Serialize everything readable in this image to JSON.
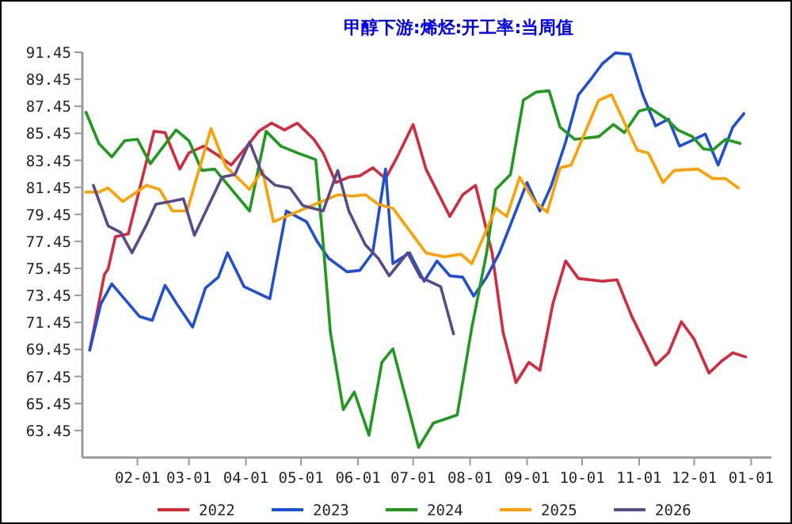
{
  "chart_data": {
    "type": "line",
    "title": "甲醇下游:烯烃:开工率:当周值",
    "xlim": [
      "2022-01-02",
      "2023-01-12"
    ],
    "ylim": [
      61.45,
      91.45
    ],
    "xticks": [
      {
        "value": "2022-02-01",
        "label": "02-01"
      },
      {
        "value": "2022-03-01",
        "label": "03-01"
      },
      {
        "value": "2022-04-01",
        "label": "04-01"
      },
      {
        "value": "2022-05-01",
        "label": "05-01"
      },
      {
        "value": "2022-06-01",
        "label": "06-01"
      },
      {
        "value": "2022-07-01",
        "label": "07-01"
      },
      {
        "value": "2022-08-01",
        "label": "08-01"
      },
      {
        "value": "2022-09-01",
        "label": "09-01"
      },
      {
        "value": "2022-10-01",
        "label": "10-01"
      },
      {
        "value": "2022-11-01",
        "label": "11-01"
      },
      {
        "value": "2022-12-01",
        "label": "12-01"
      },
      {
        "value": "2023-01-01",
        "label": "01-01"
      }
    ],
    "yticks": [
      63.45,
      65.45,
      67.45,
      69.45,
      71.45,
      73.45,
      75.45,
      77.45,
      79.45,
      81.45,
      83.45,
      85.45,
      87.45,
      89.45,
      91.45
    ],
    "legend": "bottom",
    "series": [
      {
        "name": "2022",
        "color": "#d62a3c",
        "x": [
          "2022-01-06",
          "2022-01-14",
          "2022-01-16",
          "2022-01-20",
          "2022-01-27",
          "2022-02-10",
          "2022-02-16",
          "2022-02-24",
          "2022-03-01",
          "2022-03-09",
          "2022-03-17",
          "2022-03-24",
          "2022-04-01",
          "2022-04-08",
          "2022-04-15",
          "2022-04-22",
          "2022-04-29",
          "2022-05-08",
          "2022-05-13",
          "2022-05-20",
          "2022-05-27",
          "2022-06-02",
          "2022-06-09",
          "2022-06-16",
          "2022-06-22",
          "2022-07-01",
          "2022-07-08",
          "2022-07-21",
          "2022-07-28",
          "2022-08-04",
          "2022-08-13",
          "2022-08-19",
          "2022-08-26",
          "2022-09-02",
          "2022-09-08",
          "2022-09-15",
          "2022-09-22",
          "2022-09-29",
          "2022-10-12",
          "2022-10-20",
          "2022-10-28",
          "2022-11-10",
          "2022-11-17",
          "2022-11-24",
          "2022-12-01",
          "2022-12-09",
          "2022-12-16",
          "2022-12-22",
          "2022-12-29"
        ],
        "values": [
          69.4,
          75.0,
          75.4,
          77.8,
          78.0,
          85.6,
          85.5,
          82.8,
          84.0,
          84.5,
          83.8,
          83.1,
          84.4,
          85.6,
          86.2,
          85.7,
          86.2,
          85.0,
          84.0,
          81.8,
          82.2,
          82.3,
          82.9,
          82.1,
          83.6,
          86.1,
          82.8,
          79.3,
          80.9,
          81.6,
          76.6,
          70.7,
          67.0,
          68.5,
          67.9,
          72.8,
          76.0,
          74.7,
          74.5,
          74.6,
          71.9,
          68.3,
          69.2,
          71.5,
          70.2,
          67.7,
          68.6,
          69.2,
          68.9
        ]
      },
      {
        "name": "2023",
        "color": "#1f4fd8",
        "x": [
          "2022-01-06",
          "2022-01-12",
          "2022-01-18",
          "2022-02-02",
          "2022-02-09",
          "2022-02-16",
          "2022-02-23",
          "2022-03-03",
          "2022-03-10",
          "2022-03-17",
          "2022-03-22",
          "2022-03-31",
          "2022-04-14",
          "2022-04-23",
          "2022-05-04",
          "2022-05-10",
          "2022-05-16",
          "2022-05-26",
          "2022-06-02",
          "2022-06-09",
          "2022-06-16",
          "2022-06-20",
          "2022-06-29",
          "2022-07-07",
          "2022-07-14",
          "2022-07-21",
          "2022-07-28",
          "2022-08-03",
          "2022-08-10",
          "2022-08-17",
          "2022-09-01",
          "2022-09-08",
          "2022-09-14",
          "2022-09-22",
          "2022-09-29",
          "2022-10-06",
          "2022-10-12",
          "2022-10-19",
          "2022-10-27",
          "2022-11-03",
          "2022-11-10",
          "2022-11-17",
          "2022-11-23",
          "2022-12-01",
          "2022-12-07",
          "2022-12-14",
          "2022-12-22",
          "2022-12-28"
        ],
        "values": [
          69.4,
          72.8,
          74.3,
          71.9,
          71.6,
          74.2,
          72.7,
          71.1,
          74.0,
          74.8,
          76.6,
          74.1,
          73.2,
          79.7,
          78.9,
          77.4,
          76.2,
          75.2,
          75.3,
          76.6,
          82.8,
          75.8,
          76.6,
          74.5,
          76.0,
          74.9,
          74.8,
          73.4,
          74.8,
          76.6,
          81.8,
          79.7,
          81.5,
          84.8,
          88.3,
          89.5,
          90.6,
          91.4,
          91.3,
          88.3,
          86.0,
          86.5,
          84.5,
          85.0,
          85.4,
          83.1,
          85.9,
          86.9
        ]
      },
      {
        "name": "2024",
        "color": "#1e9a1e",
        "x": [
          "2022-01-04",
          "2022-01-11",
          "2022-01-18",
          "2022-01-25",
          "2022-02-01",
          "2022-02-08",
          "2022-02-22",
          "2022-03-01",
          "2022-03-08",
          "2022-03-15",
          "2022-04-03",
          "2022-04-12",
          "2022-04-20",
          "2022-04-29",
          "2022-05-09",
          "2022-05-13",
          "2022-05-17",
          "2022-05-24",
          "2022-05-30",
          "2022-06-07",
          "2022-06-14",
          "2022-06-20",
          "2022-07-04",
          "2022-07-12",
          "2022-07-25",
          "2022-08-02",
          "2022-08-10",
          "2022-08-15",
          "2022-08-23",
          "2022-08-30",
          "2022-09-06",
          "2022-09-13",
          "2022-09-19",
          "2022-09-27",
          "2022-10-10",
          "2022-10-18",
          "2022-10-24",
          "2022-11-01",
          "2022-11-07",
          "2022-11-16",
          "2022-11-22",
          "2022-11-30",
          "2022-12-06",
          "2022-12-11",
          "2022-12-18",
          "2022-12-26"
        ],
        "values": [
          87.0,
          84.7,
          83.7,
          84.9,
          85.0,
          83.2,
          85.7,
          84.9,
          82.7,
          82.8,
          79.7,
          85.6,
          84.5,
          84.0,
          83.5,
          77.4,
          70.7,
          65.0,
          66.3,
          63.1,
          68.5,
          69.5,
          62.2,
          64.0,
          64.6,
          71.1,
          76.6,
          81.3,
          82.4,
          87.9,
          88.5,
          88.6,
          85.9,
          85.0,
          85.2,
          86.1,
          85.5,
          87.1,
          87.3,
          86.5,
          85.7,
          85.2,
          84.3,
          84.2,
          85.0,
          84.7
        ]
      },
      {
        "name": "2025",
        "color": "#ffa000",
        "x": [
          "2022-01-04",
          "2022-01-11",
          "2022-01-16",
          "2022-01-24",
          "2022-02-06",
          "2022-02-13",
          "2022-02-20",
          "2022-02-28",
          "2022-03-13",
          "2022-03-21",
          "2022-04-03",
          "2022-04-10",
          "2022-04-16",
          "2022-04-23",
          "2022-05-21",
          "2022-05-29",
          "2022-06-05",
          "2022-06-12",
          "2022-06-20",
          "2022-07-08",
          "2022-07-18",
          "2022-07-27",
          "2022-08-02",
          "2022-08-15",
          "2022-08-21",
          "2022-08-28",
          "2022-09-05",
          "2022-09-12",
          "2022-09-19",
          "2022-09-25",
          "2022-10-10",
          "2022-10-17",
          "2022-10-31",
          "2022-11-06",
          "2022-11-14",
          "2022-11-20",
          "2022-12-03",
          "2022-12-11",
          "2022-12-18",
          "2022-12-25"
        ],
        "values": [
          81.1,
          81.1,
          81.4,
          80.4,
          81.6,
          81.3,
          79.7,
          79.7,
          85.8,
          83.0,
          81.3,
          82.7,
          78.9,
          79.3,
          80.9,
          80.8,
          80.9,
          80.2,
          79.9,
          76.6,
          76.3,
          76.5,
          75.8,
          79.9,
          79.3,
          82.2,
          80.4,
          79.6,
          82.9,
          83.1,
          87.9,
          88.3,
          84.2,
          84.0,
          81.8,
          82.7,
          82.8,
          82.1,
          82.1,
          81.4
        ]
      },
      {
        "name": "2026",
        "color": "#5a4a8c",
        "x": [
          "2022-01-08",
          "2022-01-16",
          "2022-01-23",
          "2022-01-29",
          "2022-02-06",
          "2022-02-11",
          "2022-02-19",
          "2022-02-26",
          "2022-03-04",
          "2022-03-19",
          "2022-03-26",
          "2022-04-03",
          "2022-04-10",
          "2022-04-17",
          "2022-04-25",
          "2022-05-02",
          "2022-05-13",
          "2022-05-21",
          "2022-05-27",
          "2022-06-05",
          "2022-06-12",
          "2022-06-18",
          "2022-06-28",
          "2022-07-05",
          "2022-07-16",
          "2022-07-23"
        ],
        "values": [
          81.6,
          78.6,
          78.1,
          76.6,
          78.7,
          80.2,
          80.4,
          80.6,
          77.9,
          82.2,
          82.4,
          84.8,
          82.4,
          81.6,
          81.4,
          80.1,
          79.7,
          82.7,
          79.7,
          77.2,
          76.2,
          74.9,
          76.6,
          74.8,
          74.1,
          70.6
        ]
      }
    ]
  }
}
